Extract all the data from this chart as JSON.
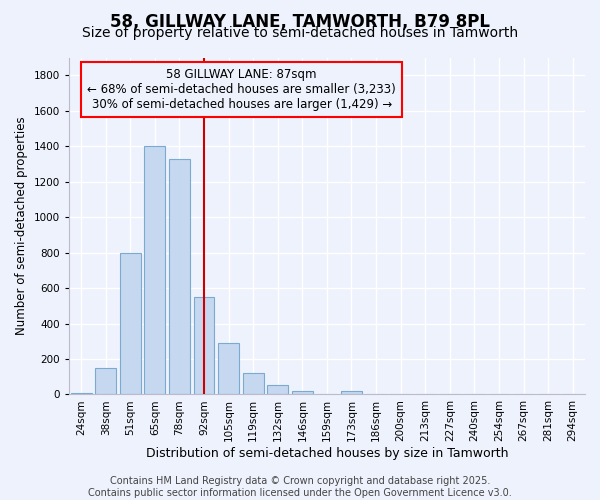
{
  "title": "58, GILLWAY LANE, TAMWORTH, B79 8PL",
  "subtitle": "Size of property relative to semi-detached houses in Tamworth",
  "xlabel": "Distribution of semi-detached houses by size in Tamworth",
  "ylabel": "Number of semi-detached properties",
  "categories": [
    "24sqm",
    "38sqm",
    "51sqm",
    "65sqm",
    "78sqm",
    "92sqm",
    "105sqm",
    "119sqm",
    "132sqm",
    "146sqm",
    "159sqm",
    "173sqm",
    "186sqm",
    "200sqm",
    "213sqm",
    "227sqm",
    "240sqm",
    "254sqm",
    "267sqm",
    "281sqm",
    "294sqm"
  ],
  "values": [
    10,
    150,
    800,
    1400,
    1330,
    550,
    290,
    120,
    55,
    20,
    0,
    20,
    0,
    0,
    0,
    0,
    0,
    0,
    0,
    0,
    5
  ],
  "bar_color": "#c5d8f0",
  "bar_edge_color": "#7aaad0",
  "background_color": "#eef2fc",
  "grid_color": "#ffffff",
  "annotation_line1": "58 GILLWAY LANE: 87sqm",
  "annotation_line2": "← 68% of semi-detached houses are smaller (3,233)",
  "annotation_line3": "30% of semi-detached houses are larger (1,429) →",
  "vline_x_idx": 5,
  "vline_color": "#cc0000",
  "ylim": [
    0,
    1900
  ],
  "yticks": [
    0,
    200,
    400,
    600,
    800,
    1000,
    1200,
    1400,
    1600,
    1800
  ],
  "footer_text": "Contains HM Land Registry data © Crown copyright and database right 2025.\nContains public sector information licensed under the Open Government Licence v3.0.",
  "title_fontsize": 12,
  "subtitle_fontsize": 10,
  "xlabel_fontsize": 9,
  "ylabel_fontsize": 8.5,
  "tick_fontsize": 7.5,
  "annotation_fontsize": 8.5,
  "footer_fontsize": 7
}
